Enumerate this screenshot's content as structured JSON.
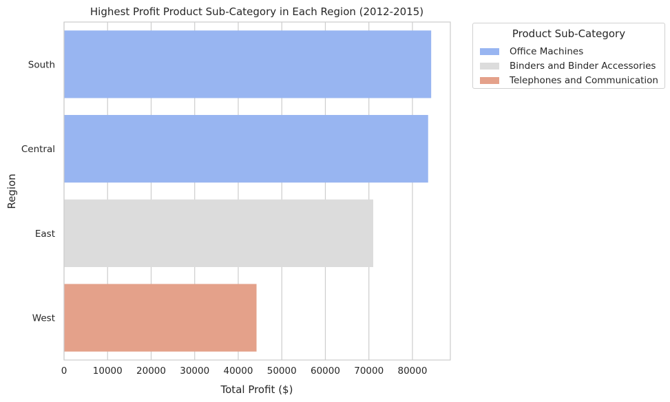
{
  "chart_data": {
    "type": "bar",
    "orientation": "horizontal",
    "title": "Highest Profit Product Sub-Category in Each Region (2012-2015)",
    "xlabel": "Total Profit ($)",
    "ylabel": "Region",
    "xlim": [
      0,
      88700
    ],
    "xticks": [
      0,
      10000,
      20000,
      30000,
      40000,
      50000,
      60000,
      70000,
      80000
    ],
    "grid": true,
    "categories": [
      "South",
      "Central",
      "East",
      "West"
    ],
    "values": [
      84300,
      83600,
      71000,
      44200
    ],
    "bar_subcategories": [
      "Office Machines",
      "Office Machines",
      "Binders and Binder Accessories",
      "Telephones and Communication"
    ],
    "legend": {
      "title": "Product Sub-Category",
      "placement": "outside-top-right",
      "items": [
        {
          "label": "Office Machines",
          "color": "#98b5f1"
        },
        {
          "label": "Binders and Binder Accessories",
          "color": "#dcdcdc"
        },
        {
          "label": "Telephones and Communication",
          "color": "#e4a18a"
        }
      ]
    }
  }
}
